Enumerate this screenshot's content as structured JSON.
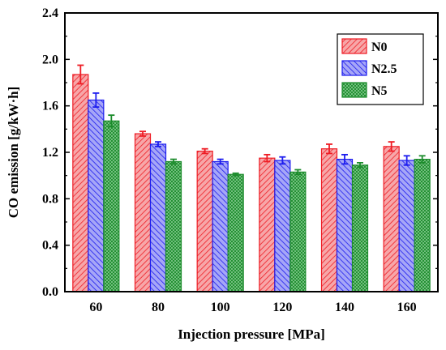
{
  "chart_data": {
    "type": "bar",
    "title": "",
    "xlabel": "Injection pressure [MPa]",
    "ylabel": "CO emission [g/kW·h]",
    "categories": [
      "60",
      "80",
      "100",
      "120",
      "140",
      "160"
    ],
    "ylim": [
      0,
      2.4
    ],
    "yticks": [
      "0.0",
      "0.4",
      "0.8",
      "1.2",
      "1.6",
      "2.0",
      "2.4"
    ],
    "legend_position": "top-right",
    "grid": false,
    "series": [
      {
        "name": "N0",
        "color": "#ee1c24",
        "fill": "#f7a6a8",
        "pattern": "hatch-forward",
        "values": [
          1.87,
          1.36,
          1.21,
          1.15,
          1.23,
          1.25
        ],
        "errors": [
          0.08,
          0.02,
          0.02,
          0.03,
          0.04,
          0.04
        ]
      },
      {
        "name": "N2.5",
        "color": "#1c1cee",
        "fill": "#a6a6f7",
        "pattern": "hatch-back",
        "values": [
          1.65,
          1.27,
          1.12,
          1.13,
          1.14,
          1.13
        ],
        "errors": [
          0.06,
          0.02,
          0.02,
          0.03,
          0.04,
          0.04
        ]
      },
      {
        "name": "N5",
        "color": "#1c8c2c",
        "fill": "#8fd09a",
        "pattern": "crosshatch",
        "values": [
          1.47,
          1.12,
          1.01,
          1.03,
          1.09,
          1.14
        ],
        "errors": [
          0.05,
          0.02,
          0.01,
          0.02,
          0.02,
          0.03
        ]
      }
    ]
  }
}
